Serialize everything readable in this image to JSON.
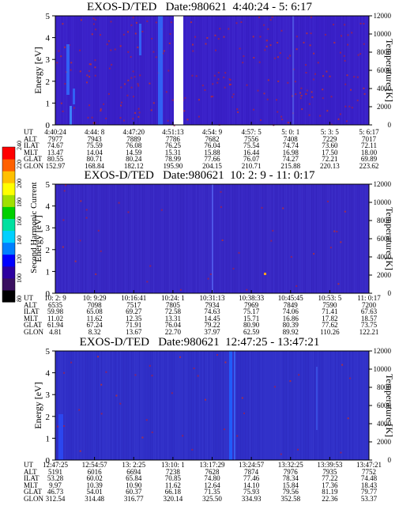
{
  "colorbar": {
    "label": "Second Harmonic Current",
    "ticks": [
      "80",
      "100",
      "120",
      "140",
      "160",
      "180",
      "200",
      "220",
      "240"
    ],
    "colors": [
      "#000000",
      "#3a1060",
      "#2c00a0",
      "#0000ff",
      "#0080ff",
      "#00d0ff",
      "#00e0a0",
      "#00d000",
      "#a0e000",
      "#ffff00",
      "#ffc000",
      "#ff6000",
      "#ff0000"
    ]
  },
  "chart_data": [
    {
      "type": "heatmap",
      "title": "EXOS-D/TED   Date:980621  4:40:24 - 5: 6:17",
      "ylabel": "Energy [eV]",
      "y2label": "Temperature [K]",
      "ylim": [
        0,
        5
      ],
      "y2lim": [
        0,
        12000
      ],
      "yticks": [
        "0",
        "1",
        "2",
        "3",
        "4",
        "5"
      ],
      "y2ticks": [
        "0",
        "2000",
        "4000",
        "6000",
        "8000",
        "10000",
        "12000"
      ],
      "background": "#3a20c8",
      "data_gap": [
        "4:50:10",
        "4:51:13"
      ],
      "ephemeris": {
        "labels": [
          "UT",
          "ALT",
          "ILAT",
          "MLT",
          "GLAT",
          "GLON"
        ],
        "columns": [
          [
            "4:40:24",
            "7977",
            "74.67",
            "13.47",
            "80.55",
            "152.97"
          ],
          [
            "4:44: 8",
            "7943",
            "75.59",
            "14.04",
            "80.71",
            "168.84"
          ],
          [
            "4:47:20",
            "7889",
            "76.08",
            "14.59",
            "80.24",
            "182.12"
          ],
          [
            "4:51:13",
            "7786",
            "76.25",
            "15.31",
            "78.99",
            "195.90"
          ],
          [
            "4:54: 9",
            "7682",
            "76.04",
            "15.88",
            "77.66",
            "204.15"
          ],
          [
            "4:57: 5",
            "7556",
            "75.54",
            "16.44",
            "76.07",
            "210.71"
          ],
          [
            "5: 0: 1",
            "7408",
            "74.74",
            "16.98",
            "74.27",
            "215.88"
          ],
          [
            "5: 3: 5",
            "7229",
            "73.60",
            "17.50",
            "72.21",
            "220.13"
          ],
          [
            "5: 6:17",
            "7017",
            "72.11",
            "18.00",
            "69.89",
            "223.62"
          ]
        ]
      }
    },
    {
      "type": "heatmap",
      "title": "EXOS-D/TED   Date:980621  10: 2: 9 - 11: 0:17",
      "ylabel": "Energy [eV]",
      "y2label": "Temperature [K]",
      "ylim": [
        0,
        5
      ],
      "y2lim": [
        0,
        12000
      ],
      "yticks": [
        "0",
        "1",
        "2",
        "3",
        "4",
        "5"
      ],
      "y2ticks": [
        "0",
        "2000",
        "4000",
        "6000",
        "8000",
        "10000",
        "12000"
      ],
      "background": "#3828c4",
      "ephemeris": {
        "labels": [
          "UT",
          "ALT",
          "ILAT",
          "MLT",
          "GLAT",
          "GLON"
        ],
        "columns": [
          [
            "10: 2: 9",
            "6535",
            "59.98",
            "11.02",
            "61.94",
            "4.81"
          ],
          [
            "10: 9:29",
            "7098",
            "65.08",
            "11.62",
            "67.24",
            "8.32"
          ],
          [
            "10:16:41",
            "7517",
            "69.27",
            "12.35",
            "71.91",
            "13.67"
          ],
          [
            "10:24: 1",
            "7805",
            "72.58",
            "13.31",
            "76.04",
            "22.70"
          ],
          [
            "10:31:13",
            "7934",
            "74.63",
            "14.45",
            "79.22",
            "37.97"
          ],
          [
            "10:38:33",
            "7969",
            "75.17",
            "15.71",
            "80.90",
            "62.59"
          ],
          [
            "10:45:45",
            "7849",
            "74.06",
            "16.86",
            "80.39",
            "89.92"
          ],
          [
            "10:53: 5",
            "7590",
            "71.41",
            "17.82",
            "77.62",
            "110.26"
          ],
          [
            "11: 0:17",
            "7200",
            "67.63",
            "18.57",
            "73.75",
            "122.21"
          ]
        ]
      }
    },
    {
      "type": "heatmap",
      "title": "EXOS-D/TED   Date:980621  12:47:25 - 13:47:21",
      "ylabel": "Energy [eV]",
      "y2label": "Temperature [K]",
      "ylim": [
        0,
        5
      ],
      "y2lim": [
        0,
        12000
      ],
      "yticks": [
        "0",
        "1",
        "2",
        "3",
        "4",
        "5"
      ],
      "y2ticks": [
        "0",
        "2000",
        "4000",
        "6000",
        "8000",
        "10000",
        "12000"
      ],
      "background": "#3030c8",
      "ephemeris": {
        "labels": [
          "UT",
          "ALT",
          "ILAT",
          "MLT",
          "GLAT",
          "GLON"
        ],
        "columns": [
          [
            "12:47:25",
            "5191",
            "53.28",
            "9.97",
            "46.73",
            "312.54"
          ],
          [
            "12:54:57",
            "6016",
            "60.02",
            "10.39",
            "54.01",
            "314.48"
          ],
          [
            "13: 2:25",
            "6694",
            "65.84",
            "10.90",
            "60.37",
            "316.77"
          ],
          [
            "13:10: 1",
            "7238",
            "70.85",
            "11.62",
            "66.18",
            "320.14"
          ],
          [
            "13:17:29",
            "7628",
            "74.80",
            "12.64",
            "71.35",
            "325.50"
          ],
          [
            "13:24:57",
            "7874",
            "77.46",
            "14.10",
            "75.93",
            "334.93"
          ],
          [
            "13:32:25",
            "7976",
            "78.34",
            "15.84",
            "79.56",
            "352.58"
          ],
          [
            "13:39:53",
            "7935",
            "77.22",
            "17.36",
            "81.19",
            "22.36"
          ],
          [
            "13:47:21",
            "7752",
            "74.48",
            "18.43",
            "79.77",
            "53.37"
          ]
        ]
      }
    }
  ]
}
